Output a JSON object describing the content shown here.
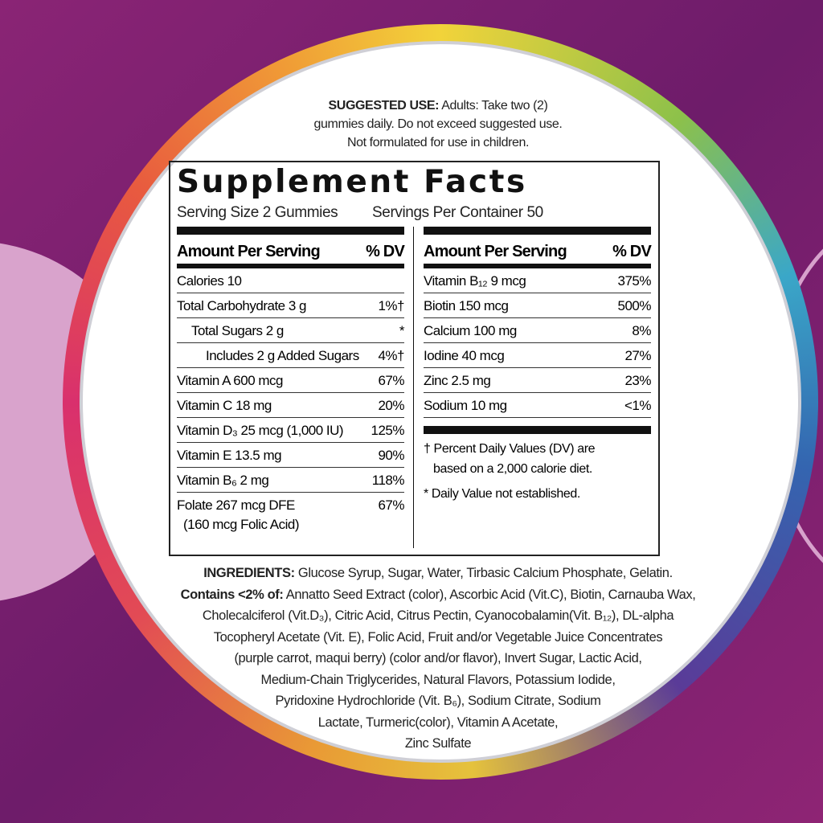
{
  "suggested_use": {
    "label": "SUGGESTED USE:",
    "lines": [
      "Adults: Take two (2)",
      "gummies daily. Do not exceed suggested use.",
      "Not formulated for use in children."
    ]
  },
  "supplement_facts": {
    "title": "Supplement Facts",
    "serving_size": "Serving Size 2 Gummies",
    "servings_per_container": "Servings Per Container 50",
    "left": {
      "header": [
        "Amount Per Serving",
        "% DV"
      ],
      "rows": [
        {
          "nutrient": "Calories 10",
          "dv": ""
        },
        {
          "nutrient": "Total Carbohydrate 3 g",
          "dv": "1%†"
        },
        {
          "nutrient": "Total Sugars 2 g",
          "dv": "*"
        },
        {
          "nutrient": "Includes 2 g Added Sugars",
          "dv": "4%†"
        },
        {
          "nutrient": "Vitamin A 600 mcg",
          "dv": "67%"
        },
        {
          "nutrient": "Vitamin C 18 mg",
          "dv": "20%"
        },
        {
          "nutrient": "Vitamin D₃ 25 mcg (1,000 IU)",
          "dv": "125%"
        },
        {
          "nutrient": "Vitamin E 13.5 mg",
          "dv": "90%"
        },
        {
          "nutrient": "Vitamin B₆ 2 mg",
          "dv": "118%"
        },
        {
          "nutrient": "Folate 267 mcg DFE",
          "dv": "67%",
          "note": "(160 mcg Folic Acid)"
        }
      ]
    },
    "right": {
      "header": [
        "Amount Per Serving",
        "% DV"
      ],
      "rows": [
        {
          "nutrient": "Vitamin B₁₂ 9 mcg",
          "dv": "375%"
        },
        {
          "nutrient": "Biotin 150 mcg",
          "dv": "500%"
        },
        {
          "nutrient": "Calcium 100 mg",
          "dv": "8%"
        },
        {
          "nutrient": "Iodine 40 mcg",
          "dv": "27%"
        },
        {
          "nutrient": "Zinc 2.5 mg",
          "dv": "23%"
        },
        {
          "nutrient": "Sodium 10 mg",
          "dv": "<1%"
        }
      ]
    },
    "footnotes": [
      "† Percent Daily Values (DV) are",
      "based on a 2,000 calorie diet.",
      "* Daily Value not established."
    ]
  },
  "ingredients": {
    "label": "INGREDIENTS:",
    "first_line": "Glucose Syrup, Sugar, Water, Tirbasic Calcium Phosphate, Gelatin.",
    "contains_label": "Contains <2% of:",
    "contains_line": "Annatto Seed Extract (color), Ascorbic Acid (Vit.C), Biotin, Carnauba Wax,",
    "lines": [
      "Cholecalciferol (Vit.D₃), Citric Acid, Citrus Pectin, Cyanocobalamin(Vit. B₁₂), DL-alpha",
      "Tocopheryl Acetate (Vit. E), Folic Acid, Fruit and/or Vegetable Juice Concentrates",
      "(purple carrot, maqui berry) (color and/or flavor), Invert Sugar, Lactic Acid,",
      "Medium-Chain Triglycerides, Natural Flavors,  Potassium Iodide,",
      "Pyridoxine Hydrochloride (Vit. B₆), Sodium Citrate, Sodium",
      "Lactate, Turmeric(color), Vitamin A Acetate,",
      "Zinc Sulfate"
    ]
  }
}
